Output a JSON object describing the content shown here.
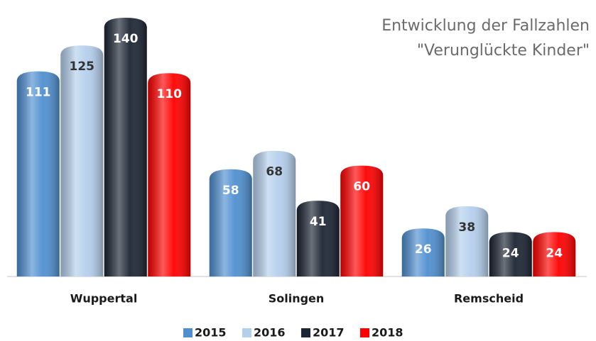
{
  "chart_data": {
    "type": "bar",
    "title": "Entwicklung der Fallzahlen",
    "subtitle": "\"Verunglückte Kinder\"",
    "categories": [
      "Wuppertal",
      "Solingen",
      "Remscheid"
    ],
    "series": [
      {
        "name": "2015",
        "color": "#4f8fd0",
        "values": [
          111,
          58,
          26
        ]
      },
      {
        "name": "2016",
        "color": "#b4cfec",
        "values": [
          125,
          68,
          38
        ]
      },
      {
        "name": "2017",
        "color": "#1c2533",
        "values": [
          140,
          41,
          24
        ]
      },
      {
        "name": "2018",
        "color": "#ff0000",
        "values": [
          110,
          60,
          24
        ]
      }
    ],
    "legend": "bottom"
  }
}
